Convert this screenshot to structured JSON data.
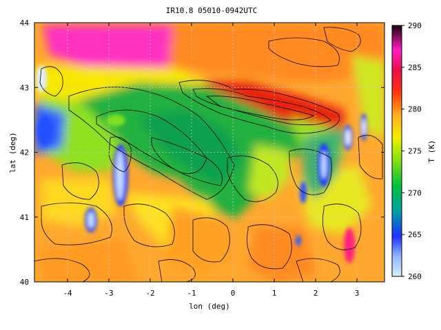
{
  "title": "IR10.8 05010-0942UTC",
  "xlabel": "lon (deg)",
  "ylabel": "lat (deg)",
  "colorbar_label": "T (K)",
  "colorbar_ticks": [
    "260",
    "265",
    "270",
    "275",
    "280",
    "285",
    "290"
  ],
  "x_ticks": [
    "-4",
    "-3",
    "-2",
    "-1",
    "0",
    "1",
    "2",
    "3"
  ],
  "y_ticks": [
    "40",
    "41",
    "42",
    "43",
    "44"
  ],
  "colors": {
    "cold": "#b8d8ff",
    "blue": "#2040ff",
    "green": "#10b040",
    "light_green": "#80e020",
    "yellow": "#ffee00",
    "orange": "#ffa020",
    "red": "#f02010",
    "magenta": "#ff20c0",
    "contour": "#000000"
  }
}
